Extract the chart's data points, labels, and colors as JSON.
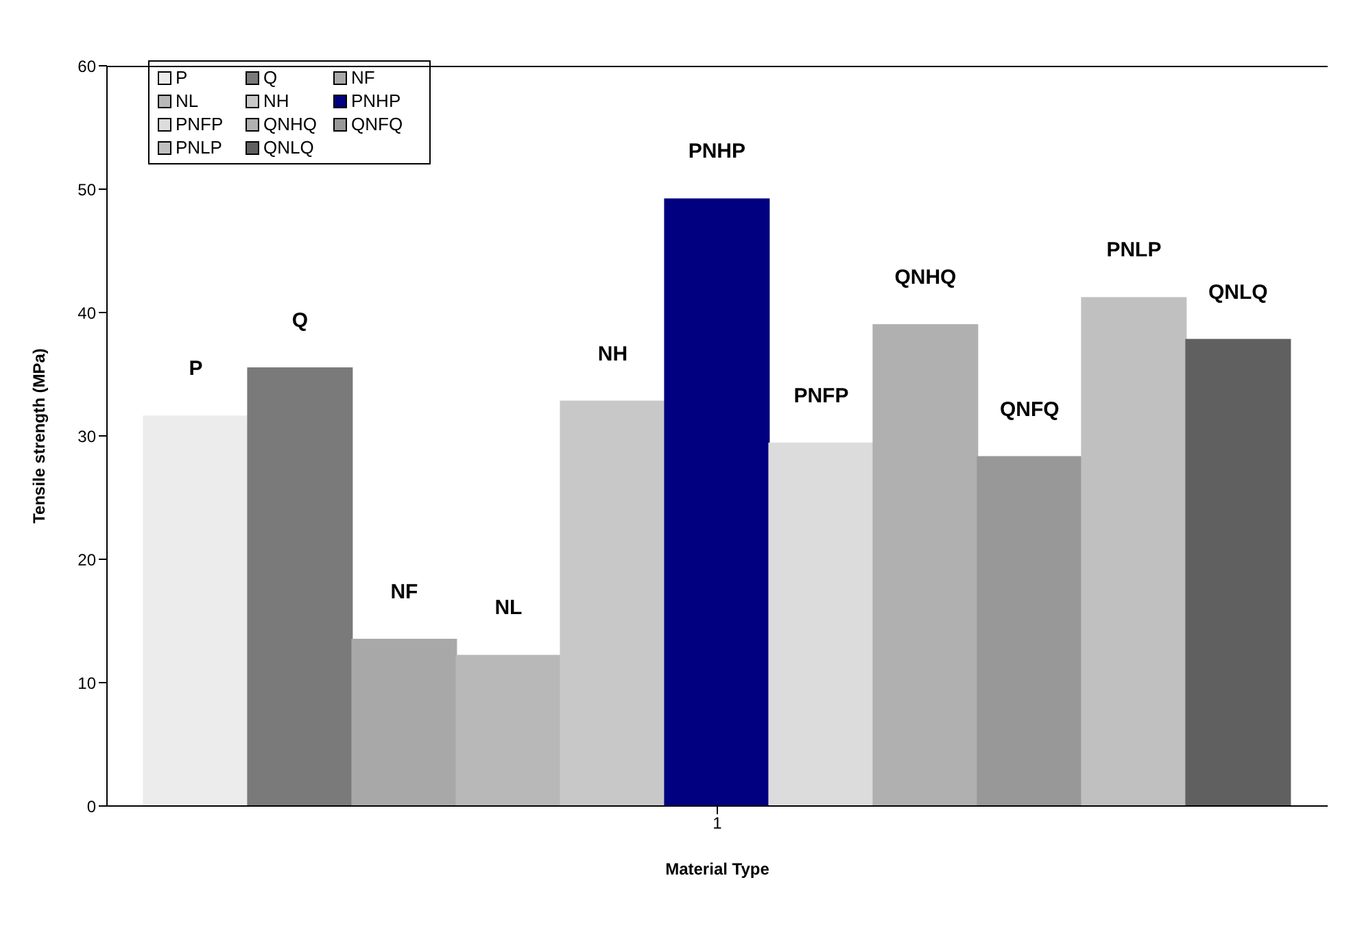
{
  "chart_data": {
    "type": "bar",
    "xlabel": "Material Type",
    "ylabel": "Tensile strength (MPa)",
    "categories": [
      "1"
    ],
    "ylim": [
      0,
      60
    ],
    "yticks": [
      0,
      10,
      20,
      30,
      40,
      50,
      60
    ],
    "grid": false,
    "legend": "top left",
    "series": [
      {
        "name": "P",
        "color": "#ececec",
        "values": [
          31.6
        ]
      },
      {
        "name": "Q",
        "color": "#7a7a7a",
        "values": [
          35.5
        ]
      },
      {
        "name": "NF",
        "color": "#a8a8a8",
        "values": [
          13.5
        ]
      },
      {
        "name": "NL",
        "color": "#b8b8b8",
        "values": [
          12.2
        ]
      },
      {
        "name": "NH",
        "color": "#c8c8c8",
        "values": [
          32.8
        ]
      },
      {
        "name": "PNHP",
        "color": "#000080",
        "values": [
          49.2
        ]
      },
      {
        "name": "PNFP",
        "color": "#dcdcdc",
        "values": [
          29.4
        ]
      },
      {
        "name": "QNHQ",
        "color": "#b0b0b0",
        "values": [
          39.0
        ]
      },
      {
        "name": "QNFQ",
        "color": "#989898",
        "values": [
          28.3
        ]
      },
      {
        "name": "PNLP",
        "color": "#c0c0c0",
        "values": [
          41.2
        ]
      },
      {
        "name": "QNLQ",
        "color": "#606060",
        "values": [
          37.8
        ]
      }
    ]
  }
}
